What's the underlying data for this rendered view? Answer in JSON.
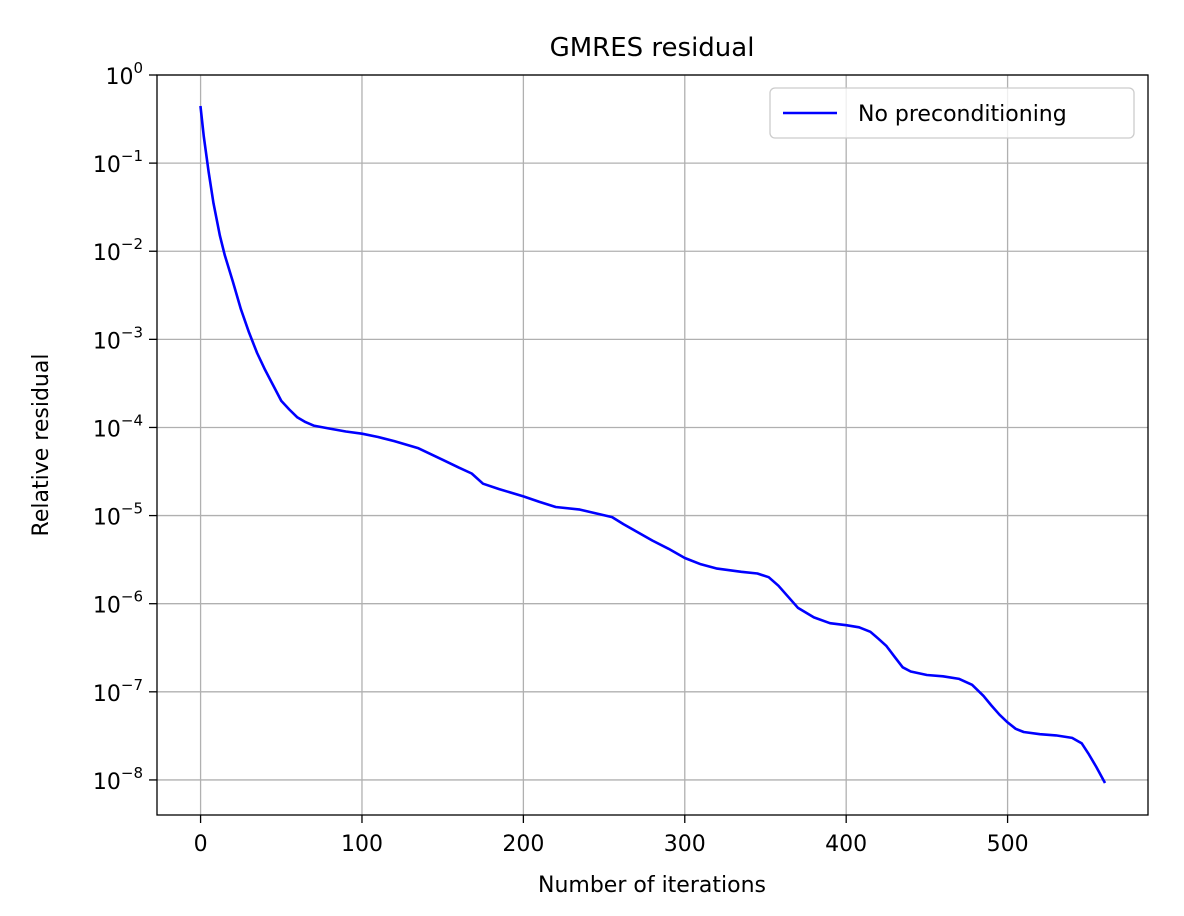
{
  "chart_data": {
    "type": "line",
    "title": "GMRES residual",
    "xlabel": "Number of iterations",
    "ylabel": "Relative residual",
    "xlim": [
      -27,
      587
    ],
    "ylim": [
      4e-09,
      1.0
    ],
    "yscale": "log",
    "grid": true,
    "legend_position": "top-right",
    "x_ticks": [
      {
        "value": 0,
        "label": "0"
      },
      {
        "value": 100,
        "label": "100"
      },
      {
        "value": 200,
        "label": "200"
      },
      {
        "value": 300,
        "label": "300"
      },
      {
        "value": 400,
        "label": "400"
      },
      {
        "value": 500,
        "label": "500"
      }
    ],
    "y_ticks": [
      {
        "value": 1,
        "base": "10",
        "exp": "0"
      },
      {
        "value": 0.1,
        "base": "10",
        "exp": "−1"
      },
      {
        "value": 0.01,
        "base": "10",
        "exp": "−2"
      },
      {
        "value": 0.001,
        "base": "10",
        "exp": "−3"
      },
      {
        "value": 0.0001,
        "base": "10",
        "exp": "−4"
      },
      {
        "value": 1e-05,
        "base": "10",
        "exp": "−5"
      },
      {
        "value": 1e-06,
        "base": "10",
        "exp": "−6"
      },
      {
        "value": 1e-07,
        "base": "10",
        "exp": "−7"
      },
      {
        "value": 1e-08,
        "base": "10",
        "exp": "−8"
      }
    ],
    "series": [
      {
        "name": "No preconditioning",
        "color": "#0000ff",
        "x": [
          0,
          2,
          5,
          8,
          12,
          15,
          20,
          25,
          30,
          35,
          40,
          45,
          50,
          55,
          60,
          65,
          70,
          80,
          90,
          100,
          110,
          120,
          135,
          150,
          160,
          168,
          175,
          185,
          200,
          210,
          220,
          235,
          245,
          255,
          262,
          270,
          280,
          290,
          300,
          310,
          320,
          335,
          345,
          352,
          358,
          364,
          370,
          380,
          390,
          400,
          408,
          415,
          420,
          425,
          430,
          435,
          440,
          450,
          460,
          470,
          478,
          485,
          490,
          495,
          500,
          505,
          510,
          520,
          530,
          540,
          546,
          550,
          555,
          560
        ],
        "y": [
          0.43,
          0.2,
          0.08,
          0.035,
          0.015,
          0.009,
          0.0045,
          0.0022,
          0.0012,
          0.0007,
          0.00045,
          0.0003,
          0.0002,
          0.00016,
          0.00013,
          0.000115,
          0.000105,
          9.7e-05,
          9e-05,
          8.5e-05,
          7.8e-05,
          7e-05,
          5.8e-05,
          4.3e-05,
          3.5e-05,
          3e-05,
          2.3e-05,
          2e-05,
          1.65e-05,
          1.43e-05,
          1.25e-05,
          1.17e-05,
          1.06e-05,
          9.6e-06,
          8e-06,
          6.6e-06,
          5.2e-06,
          4.2e-06,
          3.3e-06,
          2.8e-06,
          2.5e-06,
          2.3e-06,
          2.2e-06,
          2e-06,
          1.6e-06,
          1.2e-06,
          9e-07,
          7e-07,
          6e-07,
          5.7e-07,
          5.4e-07,
          4.8e-07,
          4e-07,
          3.3e-07,
          2.5e-07,
          1.9e-07,
          1.7e-07,
          1.55e-07,
          1.5e-07,
          1.4e-07,
          1.2e-07,
          9e-08,
          7e-08,
          5.5e-08,
          4.5e-08,
          3.8e-08,
          3.5e-08,
          3.3e-08,
          3.2e-08,
          3e-08,
          2.6e-08,
          2e-08,
          1.4e-08,
          9.5e-09
        ]
      }
    ]
  }
}
